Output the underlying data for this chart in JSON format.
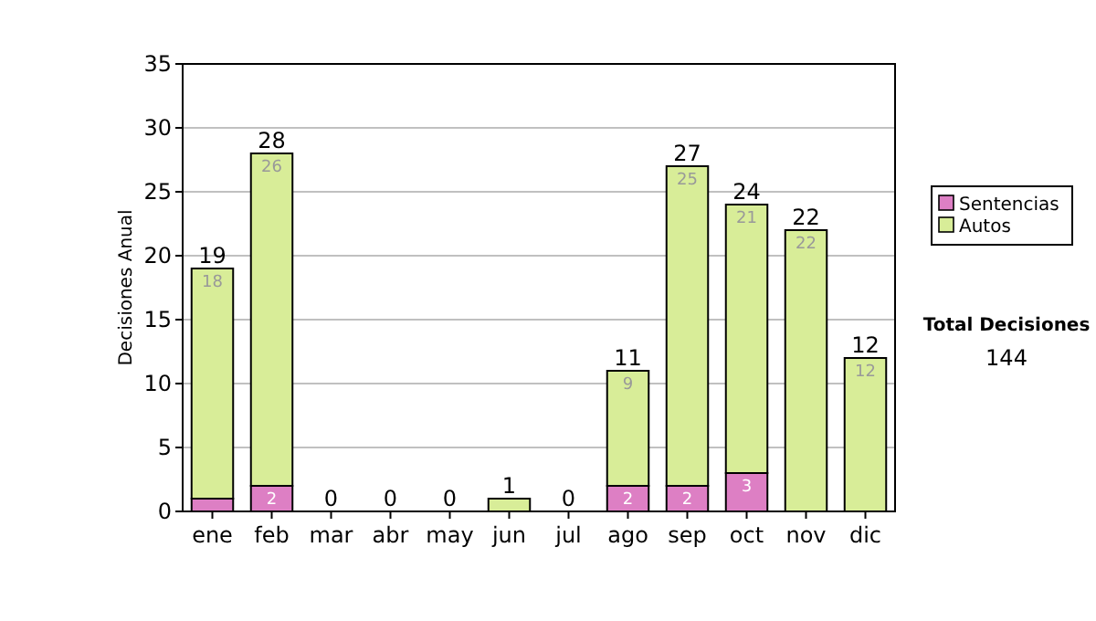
{
  "chart_data": {
    "type": "bar",
    "ylabel": "Decisiones Anual",
    "categories": [
      "ene",
      "feb",
      "mar",
      "abr",
      "may",
      "jun",
      "jul",
      "ago",
      "sep",
      "oct",
      "nov",
      "dic"
    ],
    "series": [
      {
        "name": "Sentencias",
        "color": "#dd7fc4",
        "values": [
          1,
          2,
          0,
          0,
          0,
          0,
          0,
          2,
          2,
          3,
          0,
          0
        ],
        "value_labels": [
          null,
          "2",
          null,
          null,
          null,
          null,
          null,
          "2",
          "2",
          "3",
          null,
          null
        ]
      },
      {
        "name": "Autos",
        "color": "#d8ed98",
        "values": [
          18,
          26,
          0,
          0,
          0,
          1,
          0,
          9,
          25,
          21,
          22,
          12
        ],
        "value_labels": [
          "18",
          "26",
          null,
          null,
          null,
          null,
          null,
          "9",
          "25",
          "21",
          "22",
          "12"
        ]
      }
    ],
    "stacked": true,
    "totals": [
      "19",
      "28",
      "0",
      "0",
      "0",
      "1",
      "0",
      "11",
      "27",
      "24",
      "22",
      "12"
    ],
    "ylim": [
      0,
      35
    ],
    "yticks": [
      0,
      5,
      10,
      15,
      20,
      25,
      30,
      35
    ],
    "grid": "y",
    "legend": "right",
    "annotations": [
      "Total Decisiones",
      "144"
    ]
  }
}
